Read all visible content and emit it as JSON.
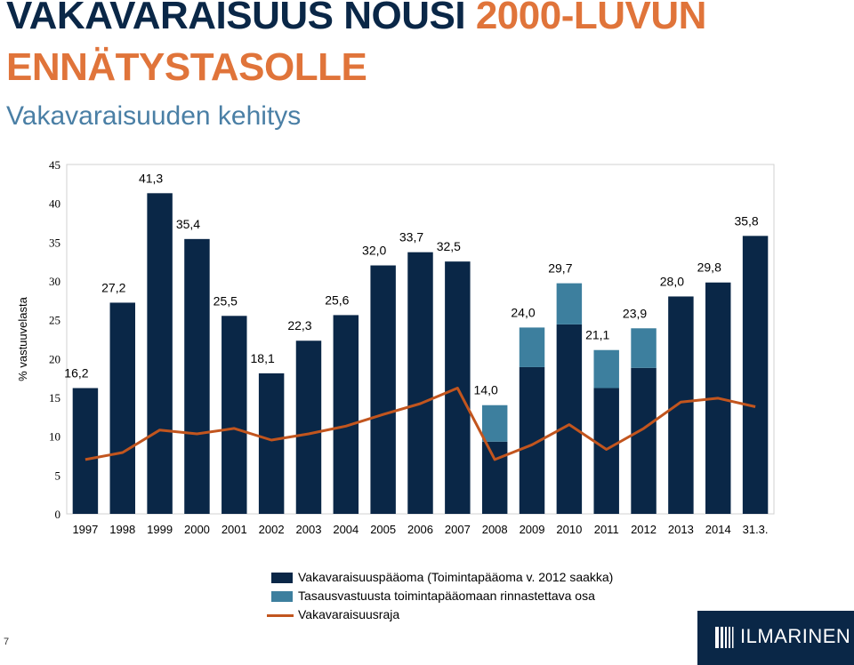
{
  "title": {
    "part1": "VAKAVARAISUUS NOUSI ",
    "part2": "2000-LUVUN",
    "line2": "ENNÄTYSTASOLLE"
  },
  "subtitle": "Vakavaraisuuden kehitys",
  "page_number": "7",
  "logo_text": "ILMARINEN",
  "colors": {
    "base": "#0a2747",
    "equalization": "#3d7f9e",
    "limit": "#c2551e",
    "title_dark": "#0a2747",
    "title_orange": "#e0743a",
    "subtitle": "#4a7fa5"
  },
  "chart_data": {
    "type": "bar",
    "stacked": true,
    "ylabel": "% vastuuvelasta",
    "ylim": [
      0,
      45
    ],
    "yticks": [
      0,
      5,
      10,
      15,
      20,
      25,
      30,
      35,
      40,
      45
    ],
    "grid": false,
    "categories": [
      "1997",
      "1998",
      "1999",
      "2000",
      "2001",
      "2002",
      "2003",
      "2004",
      "2005",
      "2006",
      "2007",
      "2008",
      "2009",
      "2010",
      "2011",
      "2012",
      "2013",
      "2014",
      "31.3."
    ],
    "series": [
      {
        "name": "Vakavaraisuuspääoma (Toimintapääoma v. 2012 saakka)",
        "kind": "bar",
        "values": [
          16.2,
          27.2,
          41.3,
          35.4,
          25.5,
          18.1,
          22.3,
          25.6,
          32.0,
          33.7,
          32.5,
          9.3,
          18.9,
          24.4,
          16.2,
          18.8,
          28.0,
          29.8,
          35.8
        ]
      },
      {
        "name": "Tasausvastuusta toimintapääomaan  rinnastettava osa",
        "kind": "bar",
        "values": [
          0,
          0,
          0,
          0,
          0,
          0,
          0,
          0,
          0,
          0,
          0,
          4.7,
          5.1,
          5.3,
          4.9,
          5.1,
          0,
          0,
          0
        ]
      },
      {
        "name": "Vakavaraisuusraja",
        "kind": "line",
        "values": [
          7.0,
          7.9,
          10.8,
          10.3,
          11.0,
          9.5,
          10.3,
          11.3,
          12.8,
          14.2,
          16.2,
          7.0,
          8.9,
          11.5,
          8.3,
          11.0,
          14.4,
          14.9,
          13.8
        ]
      }
    ],
    "data_labels": [
      "16,2",
      "27,2",
      "41,3",
      "35,4",
      "25,5",
      "18,1",
      "22,3",
      "25,6",
      "32,0",
      "33,7",
      "32,5",
      "14,0",
      "24,0",
      "29,7",
      "21,1",
      "23,9",
      "28,0",
      "29,8",
      "35,8"
    ],
    "legend_position": "bottom"
  }
}
